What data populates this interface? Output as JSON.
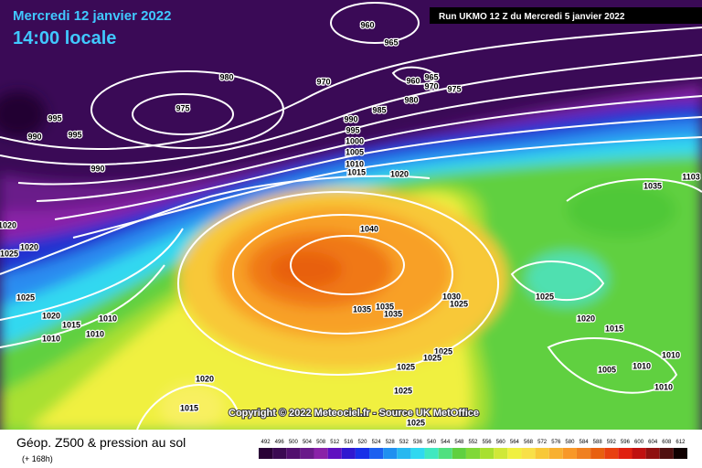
{
  "header": {
    "date": "Mercredi 12 janvier 2022",
    "time": "14:00 locale",
    "run": "Run UKMO 12 Z du Mercredi 5 janvier 2022"
  },
  "copyright": "Copyright © 2022 Meteociel.fr - Source UK MetOffice",
  "isobar_labels": [
    "960",
    "965",
    "980",
    "970",
    "965",
    "960",
    "970",
    "975",
    "980",
    "975",
    "985",
    "995",
    "990",
    "995",
    "990",
    "995",
    "1000",
    "1005",
    "1010",
    "990",
    "1015",
    "1020",
    "1035",
    "1103",
    "1020",
    "1040",
    "1020",
    "1025",
    "1025",
    "1025",
    "1030",
    "1025",
    "1035",
    "1035",
    "1035",
    "1020",
    "1015",
    "1010",
    "1020",
    "1015",
    "1010",
    "1010",
    "1025",
    "1025",
    "1010",
    "1025",
    "1005",
    "1010",
    "1020",
    "1010",
    "1025",
    "1015",
    "1025"
  ],
  "footer": {
    "title": "Géop. Z500 & pression au sol",
    "lead": "(+ 168h)"
  },
  "scale": {
    "labels": [
      492,
      496,
      500,
      504,
      508,
      512,
      516,
      520,
      524,
      528,
      532,
      536,
      540,
      544,
      548,
      552,
      556,
      560,
      564,
      568,
      572,
      576,
      580,
      584,
      588,
      592,
      596,
      600,
      604,
      608,
      612
    ],
    "colors": [
      "#2a0036",
      "#3c0a52",
      "#52106e",
      "#6a1a8a",
      "#8a22a8",
      "#6010c0",
      "#3018d0",
      "#1830e8",
      "#1c60f0",
      "#2090f0",
      "#28b8f0",
      "#30d8f0",
      "#40e8c0",
      "#50e080",
      "#60d040",
      "#80d838",
      "#a8e030",
      "#d0e838",
      "#f0f040",
      "#f8e048",
      "#f8c838",
      "#f8b030",
      "#f89828",
      "#f08020",
      "#e86010",
      "#e84010",
      "#e02010",
      "#c01010",
      "#901010",
      "#501010",
      "#100000"
    ]
  }
}
